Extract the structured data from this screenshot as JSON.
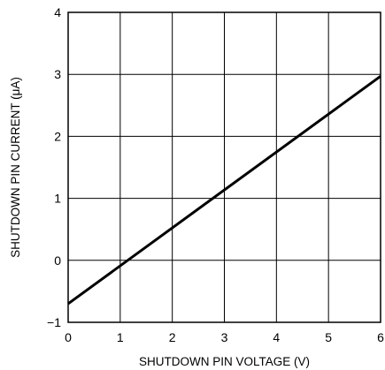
{
  "chart_data": {
    "type": "line",
    "title": "",
    "xlabel": "SHUTDOWN PIN VOLTAGE (V)",
    "ylabel": "SHUTDOWN PIN CURRENT (μA)",
    "xlim": [
      0,
      6
    ],
    "ylim": [
      -1,
      4
    ],
    "xticks": [
      "0",
      "1",
      "2",
      "3",
      "4",
      "5",
      "6"
    ],
    "yticks": [
      "−1",
      "0",
      "1",
      "2",
      "3",
      "4"
    ],
    "grid": true,
    "series": [
      {
        "x": [
          0,
          6
        ],
        "y": [
          -0.7,
          2.97
        ]
      }
    ]
  }
}
